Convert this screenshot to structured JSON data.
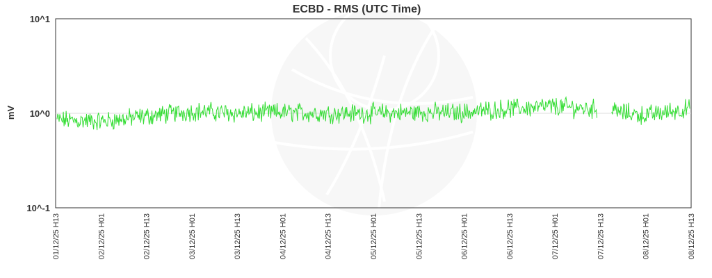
{
  "chart_data": {
    "type": "line",
    "title": "ECBD - RMS (UTC Time)",
    "ylabel": "mV",
    "xlabel": "",
    "y_scale": "log",
    "ylim": [
      0.1,
      10
    ],
    "y_ticks": [
      "10^1",
      "10^0",
      "10^-1"
    ],
    "x_ticks": [
      "01/12/25 H13",
      "02/12/25 H01",
      "02/12/25 H13",
      "03/12/25 H01",
      "03/12/25 H13",
      "04/12/25 H01",
      "04/12/25 H13",
      "05/12/25 H01",
      "05/12/25 H13",
      "06/12/25 H01",
      "06/12/25 H13",
      "07/12/25 H01",
      "07/12/25 H13",
      "08/12/25 H01",
      "08/12/25 H13"
    ],
    "grid": false,
    "series": [
      {
        "color": "#33dd33",
        "baseline_by_tick": [
          0.85,
          0.82,
          0.93,
          1.05,
          1.0,
          1.02,
          1.0,
          1.0,
          1.02,
          1.02,
          1.12,
          1.18,
          1.1,
          0.95,
          1.12
        ],
        "gap_between": [
          "07/12/25 H13",
          "07/12/25 H13"
        ]
      }
    ]
  },
  "colors": {
    "line": "#33dd33",
    "axis": "#333333",
    "background": "#ffffff",
    "watermark": "#eeeeee"
  }
}
